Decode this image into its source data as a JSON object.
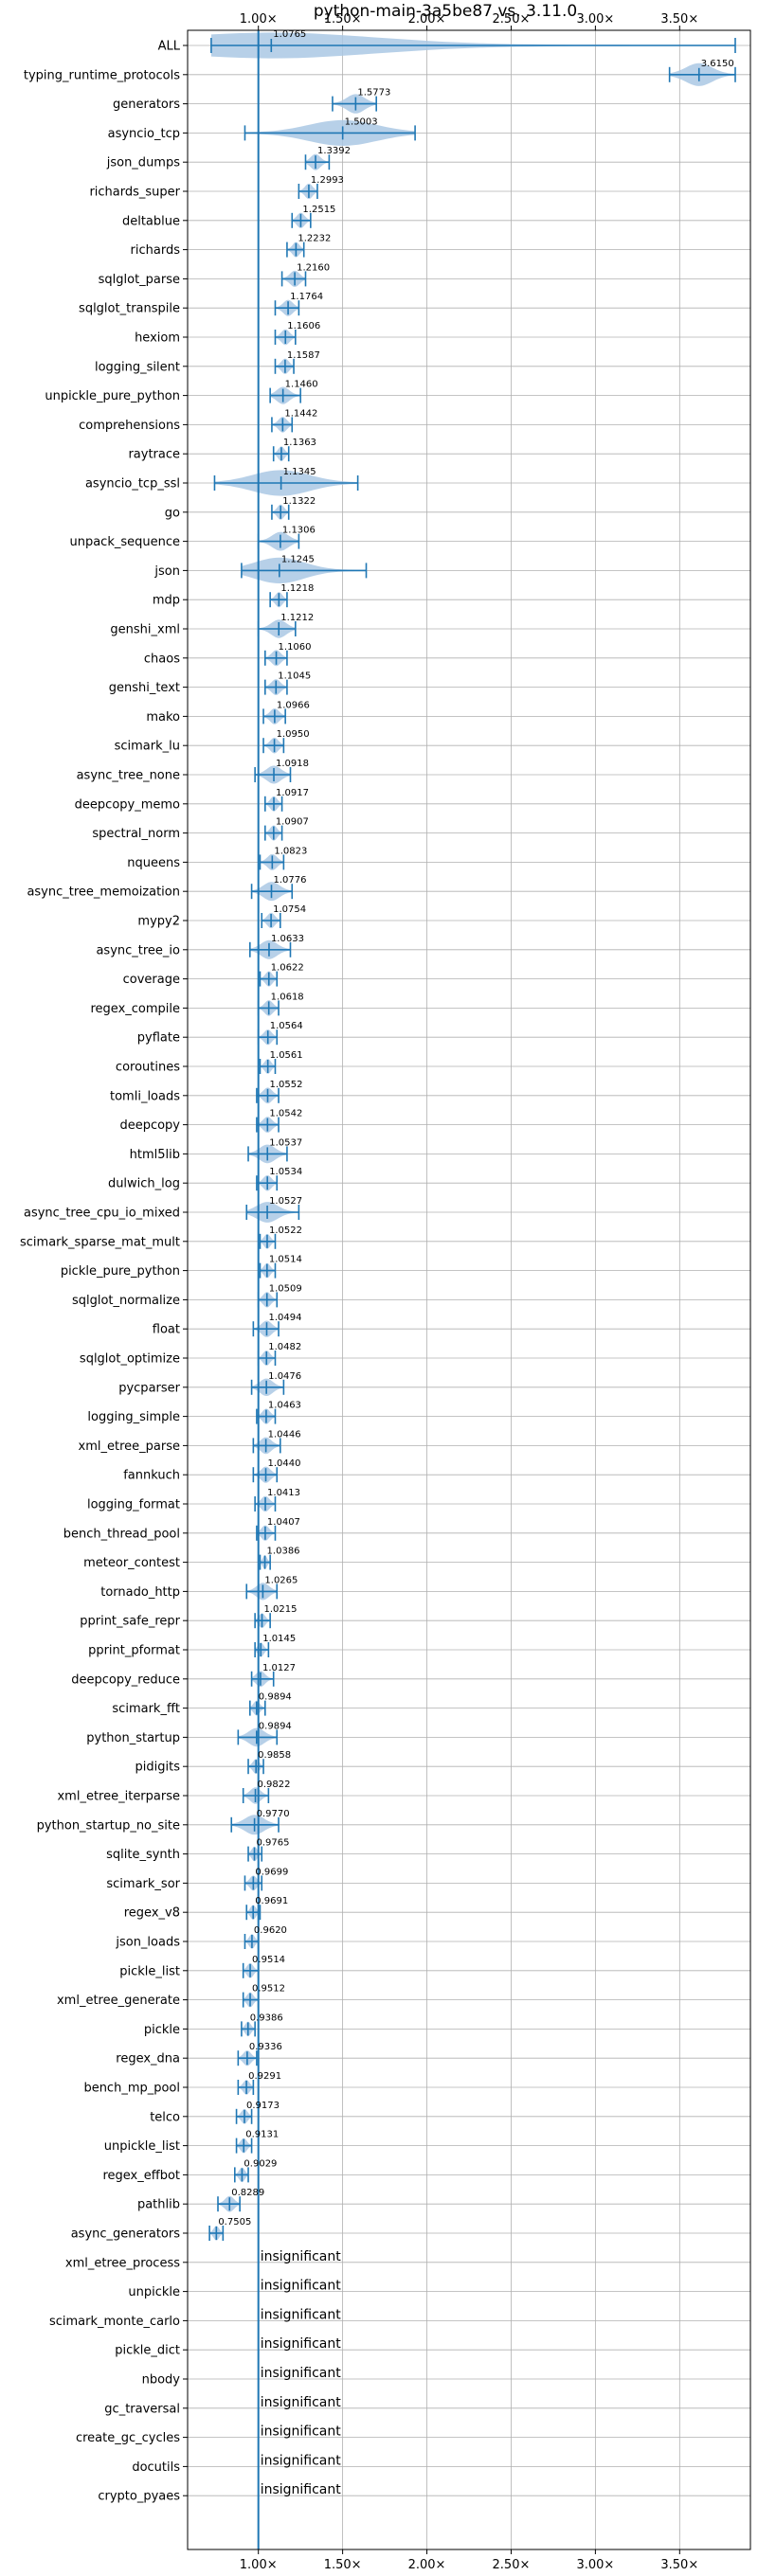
{
  "chart_data": {
    "type": "violin",
    "title": "python-main-3a5be87 vs. 3.11.0",
    "x_ticks": [
      "1.00×",
      "1.50×",
      "2.00×",
      "2.50×",
      "3.00×",
      "3.50×"
    ],
    "x_tick_values": [
      1.0,
      1.5,
      2.0,
      2.5,
      3.0,
      3.5
    ],
    "xlim": [
      0.58,
      3.92
    ],
    "reference_line": 1.0,
    "grid": true,
    "colors": {
      "violin": "#aac8e4",
      "line": "#1f77b4"
    },
    "insignificant_label": "insignificant",
    "categories": [
      "ALL",
      "typing_runtime_protocols",
      "generators",
      "asyncio_tcp",
      "json_dumps",
      "richards_super",
      "deltablue",
      "richards",
      "sqlglot_parse",
      "sqlglot_transpile",
      "hexiom",
      "logging_silent",
      "unpickle_pure_python",
      "comprehensions",
      "raytrace",
      "asyncio_tcp_ssl",
      "go",
      "unpack_sequence",
      "json",
      "mdp",
      "genshi_xml",
      "chaos",
      "genshi_text",
      "mako",
      "scimark_lu",
      "async_tree_none",
      "deepcopy_memo",
      "spectral_norm",
      "nqueens",
      "async_tree_memoization",
      "mypy2",
      "async_tree_io",
      "coverage",
      "regex_compile",
      "pyflate",
      "coroutines",
      "tomli_loads",
      "deepcopy",
      "html5lib",
      "dulwich_log",
      "async_tree_cpu_io_mixed",
      "scimark_sparse_mat_mult",
      "pickle_pure_python",
      "sqlglot_normalize",
      "float",
      "sqlglot_optimize",
      "pycparser",
      "logging_simple",
      "xml_etree_parse",
      "fannkuch",
      "logging_format",
      "bench_thread_pool",
      "meteor_contest",
      "tornado_http",
      "pprint_safe_repr",
      "pprint_pformat",
      "deepcopy_reduce",
      "scimark_fft",
      "python_startup",
      "pidigits",
      "xml_etree_iterparse",
      "python_startup_no_site",
      "sqlite_synth",
      "scimark_sor",
      "regex_v8",
      "json_loads",
      "pickle_list",
      "xml_etree_generate",
      "pickle",
      "regex_dna",
      "bench_mp_pool",
      "telco",
      "unpickle_list",
      "regex_effbot",
      "pathlib",
      "async_generators",
      "xml_etree_process",
      "unpickle",
      "scimark_monte_carlo",
      "pickle_dict",
      "nbody",
      "gc_traversal",
      "create_gc_cycles",
      "docutils",
      "crypto_pyaes"
    ],
    "values": [
      1.0765,
      3.615,
      1.5773,
      1.5003,
      1.3392,
      1.2993,
      1.2515,
      1.2232,
      1.216,
      1.1764,
      1.1606,
      1.1587,
      1.146,
      1.1442,
      1.1363,
      1.1345,
      1.1322,
      1.1306,
      1.1245,
      1.1218,
      1.1212,
      1.106,
      1.1045,
      1.0966,
      1.095,
      1.0918,
      1.0917,
      1.0907,
      1.0823,
      1.0776,
      1.0754,
      1.0633,
      1.0622,
      1.0618,
      1.0564,
      1.0561,
      1.0552,
      1.0542,
      1.0537,
      1.0534,
      1.0527,
      1.0522,
      1.0514,
      1.0509,
      1.0494,
      1.0482,
      1.0476,
      1.0463,
      1.0446,
      1.044,
      1.0413,
      1.0407,
      1.0386,
      1.0265,
      1.0215,
      1.0145,
      1.0127,
      0.9894,
      0.9894,
      0.9858,
      0.9822,
      0.977,
      0.9765,
      0.9699,
      0.9691,
      0.962,
      0.9514,
      0.9512,
      0.9386,
      0.9336,
      0.9291,
      0.9173,
      0.9131,
      0.9029,
      0.8289,
      0.7505,
      null,
      null,
      null,
      null,
      null,
      null,
      null,
      null,
      null
    ],
    "value_labels": [
      "1.0765",
      "3.6150",
      "1.5773",
      "1.5003",
      "1.3392",
      "1.2993",
      "1.2515",
      "1.2232",
      "1.2160",
      "1.1764",
      "1.1606",
      "1.1587",
      "1.1460",
      "1.1442",
      "1.1363",
      "1.1345",
      "1.1322",
      "1.1306",
      "1.1245",
      "1.1218",
      "1.1212",
      "1.1060",
      "1.1045",
      "1.0966",
      "1.0950",
      "1.0918",
      "1.0917",
      "1.0907",
      "1.0823",
      "1.0776",
      "1.0754",
      "1.0633",
      "1.0622",
      "1.0618",
      "1.0564",
      "1.0561",
      "1.0552",
      "1.0542",
      "1.0537",
      "1.0534",
      "1.0527",
      "1.0522",
      "1.0514",
      "1.0509",
      "1.0494",
      "1.0482",
      "1.0476",
      "1.0463",
      "1.0446",
      "1.0440",
      "1.0413",
      "1.0407",
      "1.0386",
      "1.0265",
      "1.0215",
      "1.0145",
      "1.0127",
      "0.9894",
      "0.9894",
      "0.9858",
      "0.9822",
      "0.9770",
      "0.9765",
      "0.9699",
      "0.9691",
      "0.9620",
      "0.9514",
      "0.9512",
      "0.9386",
      "0.9336",
      "0.9291",
      "0.9173",
      "0.9131",
      "0.9029",
      "0.8289",
      "0.7505",
      "",
      "",
      "",
      "",
      "",
      "",
      "",
      "",
      ""
    ],
    "ranges": [
      [
        0.72,
        3.83
      ],
      [
        3.44,
        3.83
      ],
      [
        1.44,
        1.7
      ],
      [
        0.92,
        1.93
      ],
      [
        1.28,
        1.42
      ],
      [
        1.24,
        1.35
      ],
      [
        1.2,
        1.31
      ],
      [
        1.17,
        1.27
      ],
      [
        1.14,
        1.28
      ],
      [
        1.1,
        1.24
      ],
      [
        1.1,
        1.22
      ],
      [
        1.1,
        1.21
      ],
      [
        1.07,
        1.25
      ],
      [
        1.08,
        1.2
      ],
      [
        1.09,
        1.18
      ],
      [
        0.74,
        1.59
      ],
      [
        1.08,
        1.18
      ],
      [
        1.0,
        1.24
      ],
      [
        0.9,
        1.64
      ],
      [
        1.07,
        1.17
      ],
      [
        1.0,
        1.22
      ],
      [
        1.04,
        1.17
      ],
      [
        1.04,
        1.17
      ],
      [
        1.03,
        1.16
      ],
      [
        1.03,
        1.15
      ],
      [
        0.98,
        1.19
      ],
      [
        1.04,
        1.14
      ],
      [
        1.04,
        1.14
      ],
      [
        1.01,
        1.15
      ],
      [
        0.96,
        1.2
      ],
      [
        1.02,
        1.13
      ],
      [
        0.95,
        1.19
      ],
      [
        1.01,
        1.11
      ],
      [
        1.0,
        1.12
      ],
      [
        1.0,
        1.11
      ],
      [
        1.01,
        1.1
      ],
      [
        0.99,
        1.12
      ],
      [
        0.99,
        1.12
      ],
      [
        0.94,
        1.17
      ],
      [
        0.99,
        1.11
      ],
      [
        0.93,
        1.24
      ],
      [
        1.01,
        1.1
      ],
      [
        1.01,
        1.1
      ],
      [
        1.0,
        1.11
      ],
      [
        0.97,
        1.12
      ],
      [
        1.0,
        1.1
      ],
      [
        0.96,
        1.15
      ],
      [
        0.99,
        1.1
      ],
      [
        0.97,
        1.13
      ],
      [
        0.97,
        1.11
      ],
      [
        0.98,
        1.1
      ],
      [
        0.99,
        1.1
      ],
      [
        1.01,
        1.07
      ],
      [
        0.93,
        1.11
      ],
      [
        0.98,
        1.07
      ],
      [
        0.98,
        1.06
      ],
      [
        0.96,
        1.09
      ],
      [
        0.95,
        1.04
      ],
      [
        0.88,
        1.11
      ],
      [
        0.94,
        1.03
      ],
      [
        0.91,
        1.06
      ],
      [
        0.84,
        1.12
      ],
      [
        0.94,
        1.02
      ],
      [
        0.92,
        1.02
      ],
      [
        0.93,
        1.01
      ],
      [
        0.92,
        1.0
      ],
      [
        0.91,
        1.0
      ],
      [
        0.91,
        1.0
      ],
      [
        0.9,
        0.98
      ],
      [
        0.88,
        0.99
      ],
      [
        0.88,
        0.97
      ],
      [
        0.87,
        0.96
      ],
      [
        0.87,
        0.96
      ],
      [
        0.86,
        0.94
      ],
      [
        0.76,
        0.89
      ],
      [
        0.71,
        0.79
      ],
      null,
      null,
      null,
      null,
      null,
      null,
      null,
      null,
      null
    ]
  }
}
